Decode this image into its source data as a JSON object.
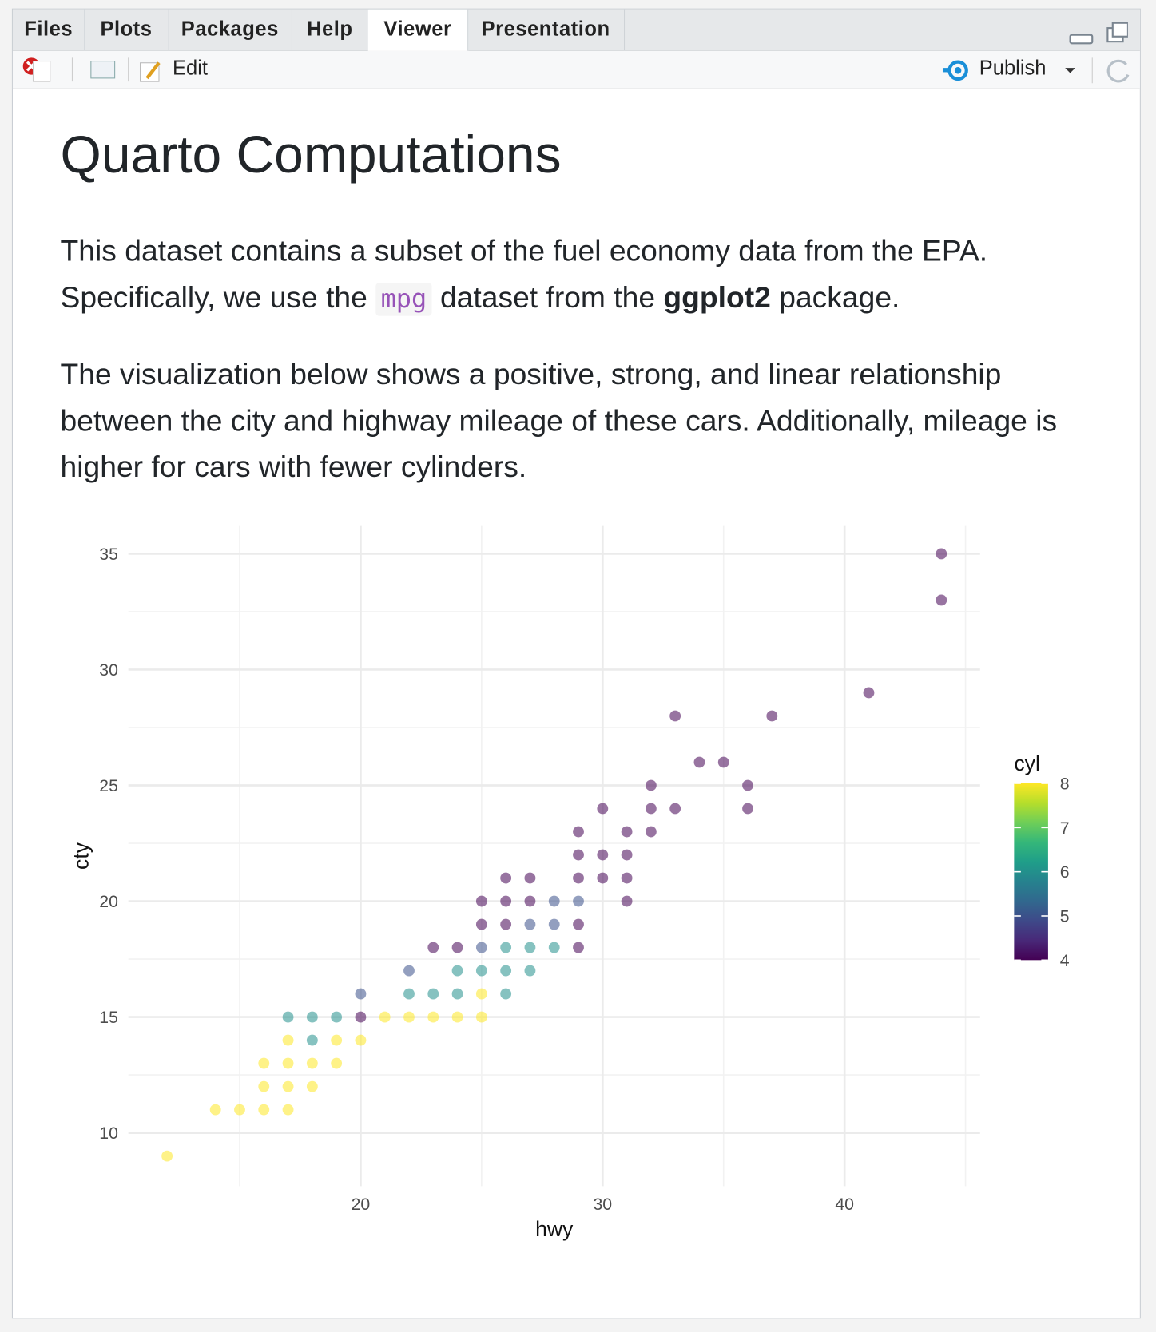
{
  "tabs": [
    "Files",
    "Plots",
    "Packages",
    "Help",
    "Viewer",
    "Presentation"
  ],
  "toolbar": {
    "edit": "Edit",
    "publish": "Publish"
  },
  "heading": "Quarto Computations",
  "paragraph_1": {
    "before": "This dataset contains a subset of the fuel economy data from the EPA. Specifically, we use the ",
    "code": "mpg",
    "middle": " dataset from the ",
    "bold": "ggplot2",
    "after": " package."
  },
  "paragraph_2": "The visualization below shows a positive, strong, and linear relationship between the city and highway mileage of these cars. Additionally, mileage is higher for cars with fewer cylinders.",
  "chart_data": {
    "type": "scatter",
    "x_label": "hwy",
    "y_label": "cty",
    "x": [
      12,
      14,
      15,
      16,
      17,
      16,
      17,
      18,
      16,
      17,
      18,
      19,
      17,
      18,
      19,
      20,
      17,
      18,
      19,
      20,
      21,
      22,
      23,
      24,
      25,
      20,
      22,
      23,
      24,
      25,
      26,
      22,
      24,
      25,
      26,
      27,
      23,
      24,
      25,
      26,
      27,
      28,
      29,
      25,
      26,
      27,
      28,
      29,
      25,
      26,
      27,
      28,
      29,
      31,
      26,
      27,
      29,
      30,
      31,
      29,
      30,
      31,
      29,
      31,
      32,
      30,
      32,
      33,
      36,
      32,
      36,
      34,
      35,
      33,
      37,
      41,
      44,
      44
    ],
    "values": [
      9,
      11,
      11,
      11,
      11,
      12,
      12,
      12,
      13,
      13,
      13,
      13,
      14,
      14,
      14,
      14,
      15,
      15,
      15,
      15,
      15,
      15,
      15,
      15,
      15,
      16,
      16,
      16,
      16,
      16,
      16,
      17,
      17,
      17,
      17,
      17,
      18,
      18,
      18,
      18,
      18,
      18,
      18,
      19,
      19,
      19,
      19,
      19,
      20,
      20,
      20,
      20,
      20,
      20,
      21,
      21,
      21,
      21,
      21,
      22,
      22,
      22,
      23,
      23,
      23,
      24,
      24,
      24,
      24,
      25,
      25,
      26,
      26,
      28,
      28,
      29,
      33,
      35
    ],
    "colorbar": {
      "title": "cyl",
      "values": [
        8,
        8,
        8,
        8,
        8,
        8,
        8,
        8,
        8,
        8,
        8,
        8,
        8,
        6,
        8,
        8,
        6,
        6,
        6,
        4,
        8,
        8,
        8,
        8,
        8,
        5,
        6,
        6,
        6,
        8,
        6,
        5,
        6,
        6,
        6,
        6,
        4,
        4,
        5,
        6,
        6,
        6,
        4,
        4,
        4,
        5,
        5,
        4,
        4,
        4,
        4,
        5,
        5,
        4,
        4,
        4,
        4,
        4,
        4,
        4,
        4,
        4,
        4,
        4,
        4,
        4,
        4,
        4,
        4,
        4,
        4,
        4,
        4,
        4,
        4,
        4,
        4,
        4
      ],
      "lim": [
        4,
        8
      ],
      "ticks": [
        4,
        5,
        6,
        7,
        8
      ],
      "colors": [
        "#440154",
        "#482878",
        "#3e4989",
        "#31688e",
        "#26828e",
        "#1f9e89",
        "#35b779",
        "#6ece58",
        "#b5de2b",
        "#fde725"
      ]
    },
    "point_alpha": 0.55,
    "xlim": [
      10.4,
      45.6
    ],
    "ylim": [
      7.7,
      36.2
    ],
    "xticks": [
      20,
      30,
      40
    ],
    "yticks": [
      10,
      15,
      20,
      25,
      30,
      35
    ],
    "grid": true
  }
}
